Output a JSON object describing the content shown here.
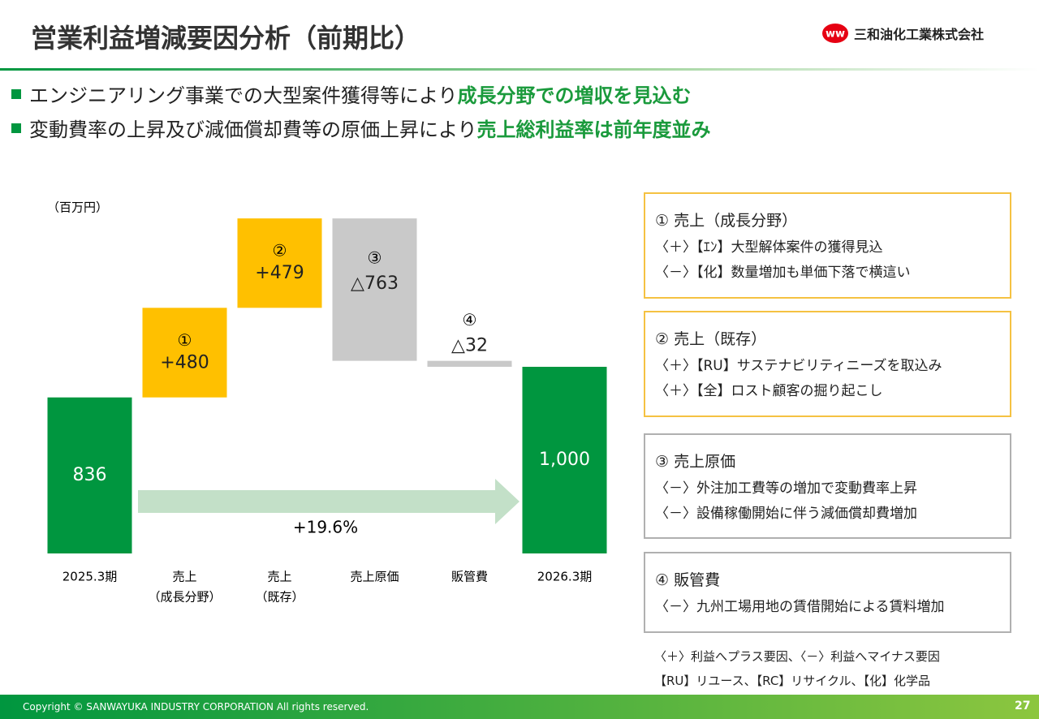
{
  "header": {
    "title": "営業利益増減要因分析（前期比）",
    "company": "三和油化工業株式会社"
  },
  "bullets": [
    {
      "text": "エンジニアリング事業での大型案件獲得等により",
      "highlight": "成長分野での増収を見込む"
    },
    {
      "text": "変動費率の上昇及び減価償却費等の原価上昇により",
      "highlight": "売上総利益率は前年度並み"
    }
  ],
  "chart_data": {
    "type": "waterfall",
    "unit": "（百万円）",
    "categories": [
      [
        "2025.3期"
      ],
      [
        "売上",
        "（成長分野）"
      ],
      [
        "売上",
        "（既存）"
      ],
      [
        "売上原価"
      ],
      [
        "販管費"
      ],
      [
        "2026.3期"
      ]
    ],
    "values": [
      836,
      480,
      479,
      -763,
      -32,
      1000
    ],
    "value_labels": [
      "836",
      "+480",
      "+479",
      "△763",
      "△32",
      "1,000"
    ],
    "step_labels": [
      null,
      "①",
      "②",
      "③",
      "④",
      null
    ],
    "colors": [
      "#00963f",
      "#ffc000",
      "#ffc000",
      "#c9c9c9",
      "#c9c9c9",
      "#00963f"
    ],
    "arrow_color": "#c3e0c8",
    "annotation": "+19.6%",
    "ylim": [
      0,
      1900
    ]
  },
  "boxes": [
    {
      "title": "① 売上（成長分野）",
      "lines": [
        "〈＋〉【ｴﾝ】大型解体案件の獲得見込",
        "〈－〉【化】数量増加も単価下落で横這い"
      ],
      "color": "#f5c242"
    },
    {
      "title": "② 売上（既存）",
      "lines": [
        "〈＋〉【RU】サステナビリティニーズを取込み",
        "〈＋〉【全】ロスト顧客の掘り起こし"
      ],
      "color": "#f5c242"
    },
    {
      "title": "③ 売上原価",
      "lines": [
        "〈－〉外注加工費等の増加で変動費率上昇",
        "〈－〉設備稼働開始に伴う減価償却費増加"
      ],
      "color": "#b0b0b0"
    },
    {
      "title": "④ 販管費",
      "lines": [
        "〈－〉九州工場用地の賃借開始による賃料増加"
      ],
      "color": "#b0b0b0"
    }
  ],
  "notes": [
    "〈＋〉利益へプラス要因、〈－〉利益へマイナス要因",
    "【RU】リユース、【RC】リサイクル、【化】化学品"
  ],
  "footer": {
    "copyright": "Copyright © SANWAYUKA INDUSTRY CORPORATION All rights reserved.",
    "page": "27"
  }
}
